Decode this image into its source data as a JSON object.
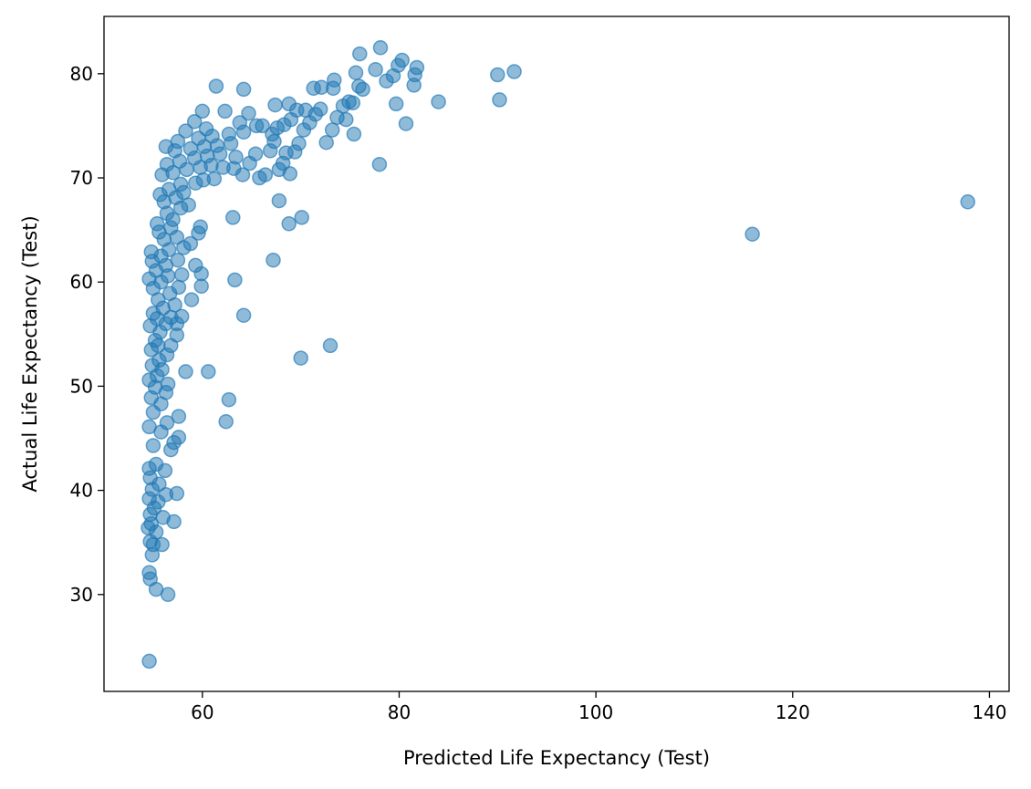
{
  "chart_data": {
    "type": "scatter",
    "title": "",
    "xlabel": "Predicted Life Expectancy (Test)",
    "ylabel": "Actual Life Expectancy (Test)",
    "xlim": [
      50,
      142
    ],
    "ylim": [
      20.7,
      85.5
    ],
    "xticks": [
      60,
      80,
      100,
      120,
      140
    ],
    "yticks": [
      30,
      40,
      50,
      60,
      70,
      80
    ],
    "grid": false,
    "legend": "none",
    "marker_color": "#1f77b4",
    "marker_alpha": 0.5,
    "series": [
      {
        "points": [
          [
            54.6,
            23.6
          ],
          [
            55.3,
            30.5
          ],
          [
            54.7,
            31.5
          ],
          [
            56.5,
            30.0
          ],
          [
            54.6,
            32.1
          ],
          [
            54.9,
            33.8
          ],
          [
            55.0,
            34.8
          ],
          [
            55.9,
            34.8
          ],
          [
            54.7,
            35.1
          ],
          [
            54.5,
            36.4
          ],
          [
            54.8,
            36.8
          ],
          [
            55.3,
            36.0
          ],
          [
            57.1,
            37.0
          ],
          [
            56.0,
            37.4
          ],
          [
            54.7,
            37.7
          ],
          [
            55.1,
            38.3
          ],
          [
            55.5,
            38.9
          ],
          [
            54.6,
            39.2
          ],
          [
            56.3,
            39.6
          ],
          [
            57.4,
            39.7
          ],
          [
            54.9,
            40.1
          ],
          [
            55.6,
            40.6
          ],
          [
            54.7,
            41.2
          ],
          [
            56.2,
            41.9
          ],
          [
            54.6,
            42.1
          ],
          [
            55.3,
            42.5
          ],
          [
            56.8,
            43.9
          ],
          [
            55.0,
            44.3
          ],
          [
            57.1,
            44.6
          ],
          [
            57.6,
            45.1
          ],
          [
            55.8,
            45.6
          ],
          [
            54.6,
            46.1
          ],
          [
            56.4,
            46.5
          ],
          [
            57.6,
            47.1
          ],
          [
            55.0,
            47.5
          ],
          [
            55.8,
            48.3
          ],
          [
            54.8,
            48.9
          ],
          [
            56.3,
            49.4
          ],
          [
            55.2,
            49.9
          ],
          [
            56.5,
            50.2
          ],
          [
            54.6,
            50.6
          ],
          [
            55.4,
            51.0
          ],
          [
            55.9,
            51.6
          ],
          [
            54.9,
            52.0
          ],
          [
            55.6,
            52.5
          ],
          [
            56.4,
            53.0
          ],
          [
            54.8,
            53.5
          ],
          [
            55.5,
            53.9
          ],
          [
            56.8,
            53.9
          ],
          [
            55.2,
            54.4
          ],
          [
            57.4,
            54.9
          ],
          [
            55.7,
            55.2
          ],
          [
            54.7,
            55.8
          ],
          [
            56.3,
            56.0
          ],
          [
            57.4,
            56.0
          ],
          [
            55.4,
            56.5
          ],
          [
            56.8,
            56.6
          ],
          [
            57.9,
            56.7
          ],
          [
            55.0,
            57.0
          ],
          [
            56.0,
            57.5
          ],
          [
            57.2,
            57.8
          ],
          [
            58.9,
            58.3
          ],
          [
            55.5,
            58.3
          ],
          [
            56.7,
            58.9
          ],
          [
            55.0,
            59.4
          ],
          [
            57.6,
            59.5
          ],
          [
            59.9,
            59.6
          ],
          [
            55.8,
            60.0
          ],
          [
            54.6,
            60.3
          ],
          [
            56.5,
            60.6
          ],
          [
            57.9,
            60.7
          ],
          [
            59.9,
            60.8
          ],
          [
            55.3,
            61.1
          ],
          [
            56.3,
            61.6
          ],
          [
            59.3,
            61.6
          ],
          [
            54.9,
            62.0
          ],
          [
            57.5,
            62.1
          ],
          [
            55.8,
            62.5
          ],
          [
            54.8,
            62.9
          ],
          [
            56.6,
            63.1
          ],
          [
            58.1,
            63.3
          ],
          [
            58.8,
            63.7
          ],
          [
            56.1,
            64.1
          ],
          [
            57.4,
            64.3
          ],
          [
            59.6,
            64.7
          ],
          [
            55.6,
            64.8
          ],
          [
            56.8,
            65.2
          ],
          [
            59.8,
            65.3
          ],
          [
            55.4,
            65.6
          ],
          [
            57.0,
            66.0
          ],
          [
            56.4,
            66.6
          ],
          [
            57.8,
            67.1
          ],
          [
            58.6,
            67.4
          ],
          [
            56.1,
            67.7
          ],
          [
            57.3,
            68.1
          ],
          [
            55.7,
            68.4
          ],
          [
            58.1,
            68.6
          ],
          [
            56.6,
            68.9
          ],
          [
            57.8,
            69.4
          ],
          [
            59.3,
            69.5
          ],
          [
            60.1,
            69.8
          ],
          [
            61.2,
            69.9
          ],
          [
            55.9,
            70.3
          ],
          [
            57.0,
            70.5
          ],
          [
            58.4,
            70.8
          ],
          [
            59.8,
            71.0
          ],
          [
            60.9,
            71.2
          ],
          [
            62.1,
            71.0
          ],
          [
            56.4,
            71.3
          ],
          [
            57.7,
            71.6
          ],
          [
            59.2,
            71.9
          ],
          [
            60.5,
            72.1
          ],
          [
            61.8,
            72.3
          ],
          [
            63.4,
            72.0
          ],
          [
            57.2,
            72.6
          ],
          [
            58.8,
            72.8
          ],
          [
            60.2,
            73.0
          ],
          [
            61.5,
            73.1
          ],
          [
            62.9,
            73.3
          ],
          [
            56.3,
            73.0
          ],
          [
            57.5,
            73.5
          ],
          [
            59.6,
            73.8
          ],
          [
            61.0,
            74.0
          ],
          [
            62.7,
            74.2
          ],
          [
            64.2,
            74.4
          ],
          [
            58.3,
            74.5
          ],
          [
            60.4,
            74.7
          ],
          [
            65.5,
            75.0
          ],
          [
            59.2,
            75.4
          ],
          [
            63.8,
            75.3
          ],
          [
            60.0,
            76.4
          ],
          [
            62.3,
            76.4
          ],
          [
            64.7,
            76.2
          ],
          [
            61.4,
            78.8
          ],
          [
            64.2,
            78.5
          ],
          [
            63.2,
            70.9
          ],
          [
            64.1,
            70.3
          ],
          [
            64.8,
            71.4
          ],
          [
            65.4,
            72.3
          ],
          [
            65.8,
            70.0
          ],
          [
            66.4,
            70.3
          ],
          [
            66.9,
            72.6
          ],
          [
            67.3,
            73.5
          ],
          [
            67.8,
            70.8
          ],
          [
            68.2,
            71.4
          ],
          [
            68.5,
            72.4
          ],
          [
            68.9,
            70.4
          ],
          [
            69.4,
            72.5
          ],
          [
            69.8,
            73.3
          ],
          [
            67.1,
            74.2
          ],
          [
            67.6,
            74.8
          ],
          [
            68.3,
            75.1
          ],
          [
            69.0,
            75.6
          ],
          [
            69.6,
            76.5
          ],
          [
            70.3,
            74.6
          ],
          [
            70.9,
            75.3
          ],
          [
            71.5,
            76.1
          ],
          [
            72.0,
            76.6
          ],
          [
            66.1,
            75.0
          ],
          [
            67.4,
            77.0
          ],
          [
            68.8,
            77.1
          ],
          [
            70.5,
            76.5
          ],
          [
            71.3,
            78.6
          ],
          [
            72.1,
            78.7
          ],
          [
            72.6,
            73.4
          ],
          [
            73.2,
            74.6
          ],
          [
            73.7,
            75.8
          ],
          [
            74.3,
            76.9
          ],
          [
            74.9,
            77.3
          ],
          [
            75.4,
            74.2
          ],
          [
            75.9,
            78.8
          ],
          [
            76.3,
            78.5
          ],
          [
            75.6,
            80.1
          ],
          [
            76.0,
            81.9
          ],
          [
            73.3,
            78.6
          ],
          [
            73.4,
            79.4
          ],
          [
            75.3,
            77.2
          ],
          [
            74.6,
            75.6
          ],
          [
            77.6,
            80.4
          ],
          [
            78.1,
            82.5
          ],
          [
            78.7,
            79.3
          ],
          [
            79.4,
            79.8
          ],
          [
            79.9,
            80.8
          ],
          [
            80.3,
            81.3
          ],
          [
            81.5,
            78.9
          ],
          [
            81.6,
            79.9
          ],
          [
            81.8,
            80.6
          ],
          [
            79.7,
            77.1
          ],
          [
            80.7,
            75.2
          ],
          [
            84.0,
            77.3
          ],
          [
            78.0,
            71.3
          ],
          [
            90.0,
            79.9
          ],
          [
            91.7,
            80.2
          ],
          [
            90.2,
            77.5
          ],
          [
            67.8,
            67.8
          ],
          [
            63.1,
            66.2
          ],
          [
            68.8,
            65.6
          ],
          [
            70.1,
            66.2
          ],
          [
            67.2,
            62.1
          ],
          [
            63.3,
            60.2
          ],
          [
            64.2,
            56.8
          ],
          [
            70.0,
            52.7
          ],
          [
            73.0,
            53.9
          ],
          [
            58.3,
            51.4
          ],
          [
            60.6,
            51.4
          ],
          [
            62.7,
            48.7
          ],
          [
            62.4,
            46.6
          ],
          [
            115.9,
            64.6
          ],
          [
            137.8,
            67.7
          ]
        ]
      }
    ]
  }
}
